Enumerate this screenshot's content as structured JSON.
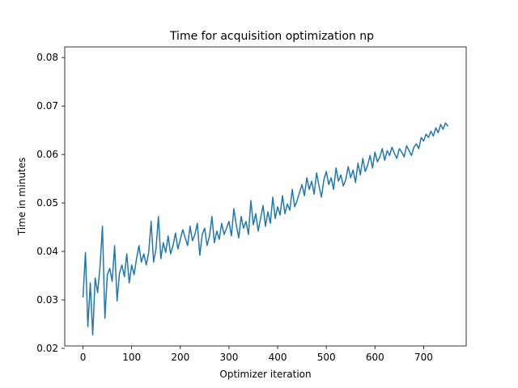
{
  "chart_data": {
    "type": "line",
    "title": "Time for acquisition optimization np",
    "xlabel": "Optimizer iteration",
    "ylabel": "Time in minutes",
    "xlim": [
      -37.5,
      787.5
    ],
    "ylim": [
      0.0205,
      0.0822
    ],
    "xticks": [
      0,
      100,
      200,
      300,
      400,
      500,
      600,
      700
    ],
    "xtick_labels": [
      "0",
      "100",
      "200",
      "300",
      "400",
      "500",
      "600",
      "700"
    ],
    "yticks": [
      0.02,
      0.03,
      0.04,
      0.05,
      0.06,
      0.07,
      0.08
    ],
    "ytick_labels": [
      "0.02",
      "0.03",
      "0.04",
      "0.05",
      "0.06",
      "0.07",
      "0.08"
    ],
    "grid": false,
    "series": [
      {
        "color": "#1f77b4",
        "x": [
          0,
          5,
          10,
          15,
          20,
          25,
          30,
          35,
          40,
          45,
          50,
          55,
          60,
          65,
          70,
          75,
          80,
          85,
          90,
          95,
          100,
          105,
          110,
          115,
          120,
          125,
          130,
          135,
          140,
          145,
          150,
          155,
          160,
          165,
          170,
          175,
          180,
          185,
          190,
          195,
          200,
          205,
          210,
          215,
          220,
          225,
          230,
          235,
          240,
          245,
          250,
          255,
          260,
          265,
          270,
          275,
          280,
          285,
          290,
          295,
          300,
          305,
          310,
          315,
          320,
          325,
          330,
          335,
          340,
          345,
          350,
          355,
          360,
          365,
          370,
          375,
          380,
          385,
          390,
          395,
          400,
          405,
          410,
          415,
          420,
          425,
          430,
          435,
          440,
          445,
          450,
          455,
          460,
          465,
          470,
          475,
          480,
          485,
          490,
          495,
          500,
          505,
          510,
          515,
          520,
          525,
          530,
          535,
          540,
          545,
          550,
          555,
          560,
          565,
          570,
          575,
          580,
          585,
          590,
          595,
          600,
          605,
          610,
          615,
          620,
          625,
          630,
          635,
          640,
          645,
          650,
          655,
          660,
          665,
          670,
          675,
          680,
          685,
          690,
          695,
          700,
          705,
          710,
          715,
          720,
          725,
          730,
          735,
          740,
          745,
          750
        ],
        "y": [
          0.0305,
          0.0398,
          0.0245,
          0.0335,
          0.0228,
          0.0345,
          0.0315,
          0.0368,
          0.0452,
          0.0262,
          0.0352,
          0.0365,
          0.0338,
          0.0412,
          0.0298,
          0.0355,
          0.0372,
          0.0348,
          0.0395,
          0.0335,
          0.0372,
          0.0352,
          0.0385,
          0.0412,
          0.0378,
          0.0395,
          0.0372,
          0.0398,
          0.0462,
          0.0378,
          0.0405,
          0.0472,
          0.0385,
          0.0418,
          0.0398,
          0.0432,
          0.0395,
          0.0412,
          0.0438,
          0.0405,
          0.0425,
          0.0445,
          0.0428,
          0.0412,
          0.0452,
          0.0422,
          0.0435,
          0.0458,
          0.0392,
          0.0435,
          0.0448,
          0.0412,
          0.0432,
          0.0472,
          0.0418,
          0.0442,
          0.0425,
          0.0458,
          0.0435,
          0.0448,
          0.0462,
          0.0432,
          0.0488,
          0.0455,
          0.0428,
          0.0472,
          0.0448,
          0.0462,
          0.0435,
          0.0505,
          0.0455,
          0.0478,
          0.0442,
          0.0468,
          0.0495,
          0.0452,
          0.0482,
          0.0458,
          0.0512,
          0.0468,
          0.0492,
          0.0475,
          0.0515,
          0.0478,
          0.0498,
          0.0485,
          0.0528,
          0.0492,
          0.0505,
          0.0522,
          0.0538,
          0.0515,
          0.0552,
          0.0528,
          0.0545,
          0.0518,
          0.0562,
          0.0535,
          0.0512,
          0.0548,
          0.0565,
          0.0538,
          0.0552,
          0.0528,
          0.0572,
          0.0545,
          0.0558,
          0.0535,
          0.0548,
          0.0575,
          0.0552,
          0.0568,
          0.0542,
          0.0582,
          0.0558,
          0.0592,
          0.0565,
          0.0578,
          0.0598,
          0.0572,
          0.0605,
          0.0585,
          0.0595,
          0.0612,
          0.0588,
          0.0608,
          0.0598,
          0.0615,
          0.0602,
          0.0592,
          0.0612,
          0.0605,
          0.0595,
          0.0618,
          0.0608,
          0.0598,
          0.0615,
          0.0622,
          0.0612,
          0.0635,
          0.0628,
          0.0642,
          0.0635,
          0.0648,
          0.0638,
          0.0655,
          0.0645,
          0.0662,
          0.0652,
          0.0665,
          0.0658
        ]
      }
    ]
  }
}
